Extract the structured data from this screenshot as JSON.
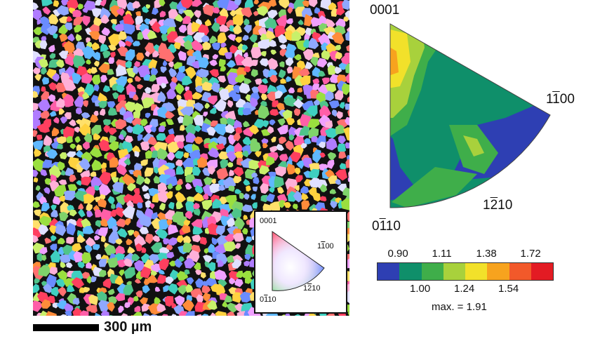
{
  "ebsd_map": {
    "scale_label": "300 µm",
    "grain_colors": [
      "#ff5fa8",
      "#7fd36a",
      "#5fb8ff",
      "#ffd23f",
      "#b07cff",
      "#ff8c3a",
      "#3fd0c0",
      "#ff3f5f",
      "#c8f06a",
      "#8fa8ff",
      "#ffb0d8",
      "#4fc48a",
      "#e0e0ff",
      "#f0a0ff",
      "#6a8cff",
      "#ffe06a",
      "#9adf3f",
      "#ff7070"
    ],
    "legend": {
      "top": "0001",
      "right_a": "1",
      "right_b": "1",
      "right_c": "00",
      "bottom_right_a": "1",
      "bottom_right_b": "2",
      "bottom_right_c": "10",
      "bottom_left_a": "0",
      "bottom_left_b": "1",
      "bottom_left_c": "10"
    }
  },
  "pole_figure": {
    "label_top": "0001",
    "label_right_a": "1",
    "label_right_b": "1",
    "label_right_c": "00",
    "label_mid_a": "1",
    "label_mid_b": "2",
    "label_mid_c": "10",
    "label_bottom_a": "0",
    "label_bottom_b": "1",
    "label_bottom_c": "10",
    "colors": {
      "blue": "#2e3fb3",
      "teal": "#0f8f6a",
      "green": "#3fae4a",
      "yellowgreen": "#a8d13c",
      "yellow": "#f2e12a",
      "orange": "#f7a31e",
      "red": "#e2371f"
    }
  },
  "colorbar": {
    "colors": [
      "#2e3fb3",
      "#0f8f6a",
      "#3fae4a",
      "#a8d13c",
      "#f2e12a",
      "#f7a31e",
      "#f2592a",
      "#e31b23"
    ],
    "ticks_top": [
      "0.90",
      "1.11",
      "1.38",
      "1.72"
    ],
    "ticks_bottom": [
      "1.00",
      "1.24",
      "1.54"
    ],
    "max_label": "max. = 1.91"
  }
}
